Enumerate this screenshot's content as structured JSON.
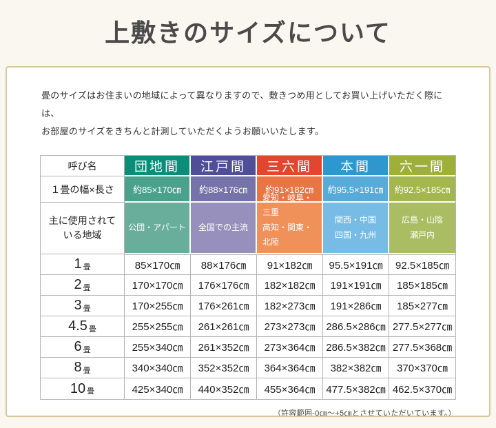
{
  "page": {
    "title": "上敷きのサイズについて",
    "description": "畳のサイズはお住まいの地域によって異なりますので、敷きつめ用としてお買い上げいただく際には、\nお部屋のサイズをきちんと計測していただくようお願いいたします。",
    "footnote": "（許容範囲-0㎝～+5㎝とさせていただいています。）",
    "colors": {
      "page_bg": "#faf7f1",
      "panel_bg": "#ffffff",
      "panel_border": "#d9c69c",
      "grid_line": "#b3b3b3",
      "title_text": "#4a4a4a"
    }
  },
  "table": {
    "corner_header": "呼び名",
    "size_row_label": "１畳の幅×長さ",
    "region_row_label": "主に使用されて\nいる地域",
    "columns": [
      {
        "name": "団地間",
        "size": "約85×170㎝",
        "regions": "公団・アパート",
        "header_color": "#0a8e79",
        "size_color": "#4aa28d",
        "region_color": "#68ae9b"
      },
      {
        "name": "江戸間",
        "size": "約88×176㎝",
        "regions": "全国での主流",
        "header_color": "#4f4e98",
        "size_color": "#7573a9",
        "region_color": "#9890bc"
      },
      {
        "name": "三六間",
        "size": "約91×182㎝",
        "regions": "愛知・岐阜・三重\n高知・関東・北陸\n沖縄",
        "header_color": "#e2462e",
        "size_color": "#ea7544",
        "region_color": "#f0915a"
      },
      {
        "name": "本間",
        "size": "約95.5×191㎝",
        "regions": "関西・中国\n四国・九州",
        "header_color": "#2e97d0",
        "size_color": "#58abd9",
        "region_color": "#77bce4"
      },
      {
        "name": "六一間",
        "size": "約92.5×185㎝",
        "regions": "広島・山陰\n瀬戸内",
        "header_color": "#9fb03a",
        "size_color": "#a3b74e",
        "region_color": "#aabd62"
      }
    ],
    "rows": [
      {
        "label_num": "1",
        "label_unit": "畳",
        "values": [
          "85×170㎝",
          "88×176㎝",
          "91×182㎝",
          "95.5×191㎝",
          "92.5×185㎝"
        ]
      },
      {
        "label_num": "2",
        "label_unit": "畳",
        "values": [
          "170×170㎝",
          "176×176㎝",
          "182×182㎝",
          "191×191㎝",
          "185×185㎝"
        ]
      },
      {
        "label_num": "3",
        "label_unit": "畳",
        "values": [
          "170×255㎝",
          "176×261㎝",
          "182×273㎝",
          "191×286㎝",
          "185×277㎝"
        ]
      },
      {
        "label_num": "4.5",
        "label_unit": "畳",
        "values": [
          "255×255㎝",
          "261×261㎝",
          "273×273㎝",
          "286.5×286㎝",
          "277.5×277㎝"
        ]
      },
      {
        "label_num": "6",
        "label_unit": "畳",
        "values": [
          "255×340㎝",
          "261×352㎝",
          "273×364㎝",
          "286.5×382㎝",
          "277.5×368㎝"
        ]
      },
      {
        "label_num": "8",
        "label_unit": "畳",
        "values": [
          "340×340㎝",
          "352×352㎝",
          "364×364㎝",
          "382×382㎝",
          "370×370㎝"
        ]
      },
      {
        "label_num": "10",
        "label_unit": "畳",
        "values": [
          "425×340㎝",
          "440×352㎝",
          "455×364㎝",
          "477.5×382㎝",
          "462.5×370㎝"
        ]
      }
    ]
  }
}
